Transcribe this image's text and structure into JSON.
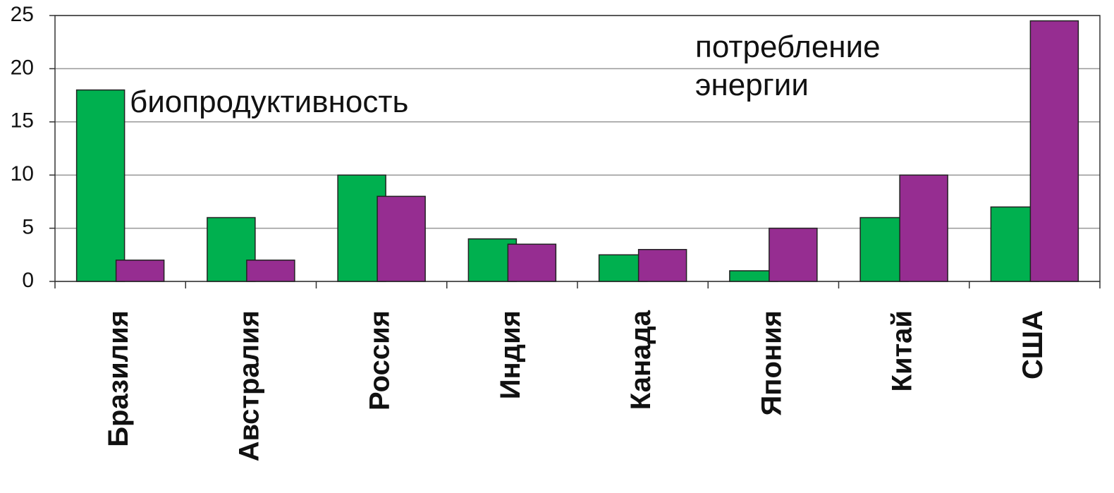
{
  "chart_data": {
    "type": "bar",
    "categories": [
      "Бразилия",
      "Австралия",
      "Россия",
      "Индия",
      "Канада",
      "Япония",
      "Китай",
      "США"
    ],
    "series": [
      {
        "name": "биопродуктивность",
        "color": "#00b04f",
        "values": [
          18,
          6,
          10,
          4,
          2.5,
          1,
          6,
          7
        ]
      },
      {
        "name": "потребление энергии",
        "color": "#962d91",
        "values": [
          2,
          2,
          8,
          3.5,
          3,
          5,
          10,
          24.5
        ]
      }
    ],
    "ylim": [
      0,
      25
    ],
    "yticks": [
      0,
      5,
      10,
      15,
      20,
      25
    ],
    "grid": true
  }
}
